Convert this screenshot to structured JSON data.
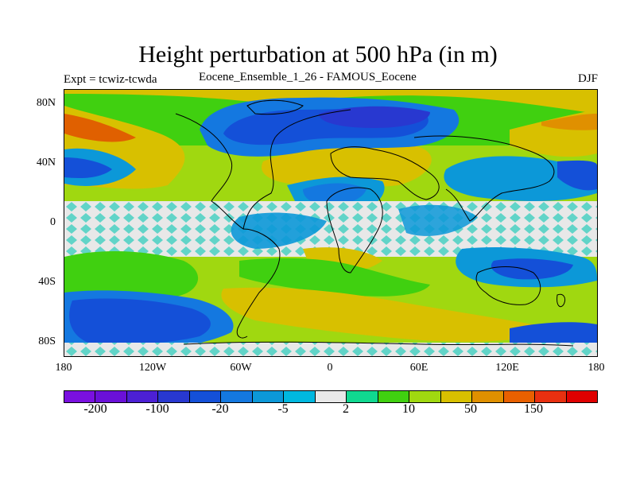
{
  "title": "Height perturbation at 500 hPa (in m)",
  "left_label": "Expt = tcwiz-tcwda",
  "center_label": "Eocene_Ensemble_1_26 - FAMOUS_Eocene",
  "right_label": "DJF",
  "lat_ticks": [
    "80N",
    "40N",
    "0",
    "40S",
    "80S"
  ],
  "lon_ticks": [
    "180",
    "120W",
    "60W",
    "0",
    "60E",
    "120E",
    "180"
  ],
  "colorbar": {
    "colors": [
      "#7a10e0",
      "#6a10d8",
      "#4c20d4",
      "#2838d0",
      "#1450d8",
      "#1478e0",
      "#0c98d8",
      "#00b8e0",
      "#e8e8e8",
      "#10d890",
      "#40d010",
      "#a0d810",
      "#d8c000",
      "#e09000",
      "#e86000",
      "#e83010",
      "#e00000"
    ],
    "labels": [
      "-200",
      "-100",
      "-20",
      "-5",
      "2",
      "10",
      "50",
      "150"
    ]
  }
}
